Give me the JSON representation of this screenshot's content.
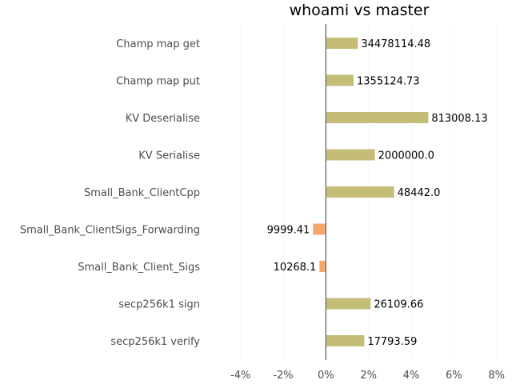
{
  "chart_data": {
    "type": "bar",
    "orientation": "horizontal",
    "title": "whoami vs master",
    "xlabel": "",
    "ylabel": "",
    "xlim": [
      -5,
      8.2
    ],
    "x_ticks": [
      -4,
      -2,
      0,
      2,
      4,
      6,
      8
    ],
    "x_tick_labels": [
      "-4%",
      "-2%",
      "0%",
      "2%",
      "4%",
      "6%",
      "8%"
    ],
    "grid": true,
    "categories": [
      "Champ map get",
      "Champ map put",
      "KV Deserialise",
      "KV Serialise",
      "Small_Bank_ClientCpp",
      "Small_Bank_ClientSigs_Forwarding",
      "Small_Bank_Client_Sigs",
      "secp256k1 sign",
      "secp256k1 verify"
    ],
    "values": [
      1.5,
      1.3,
      4.8,
      2.3,
      3.2,
      -0.6,
      -0.3,
      2.1,
      1.8
    ],
    "value_labels": [
      "34478114.48",
      "1355124.73",
      "813008.13",
      "2000000.0",
      "48442.0",
      "9999.41",
      "10268.1",
      "26109.66",
      "17793.59"
    ],
    "colors": {
      "positive": "#c3bd78",
      "negative": "#f4a66b"
    }
  }
}
